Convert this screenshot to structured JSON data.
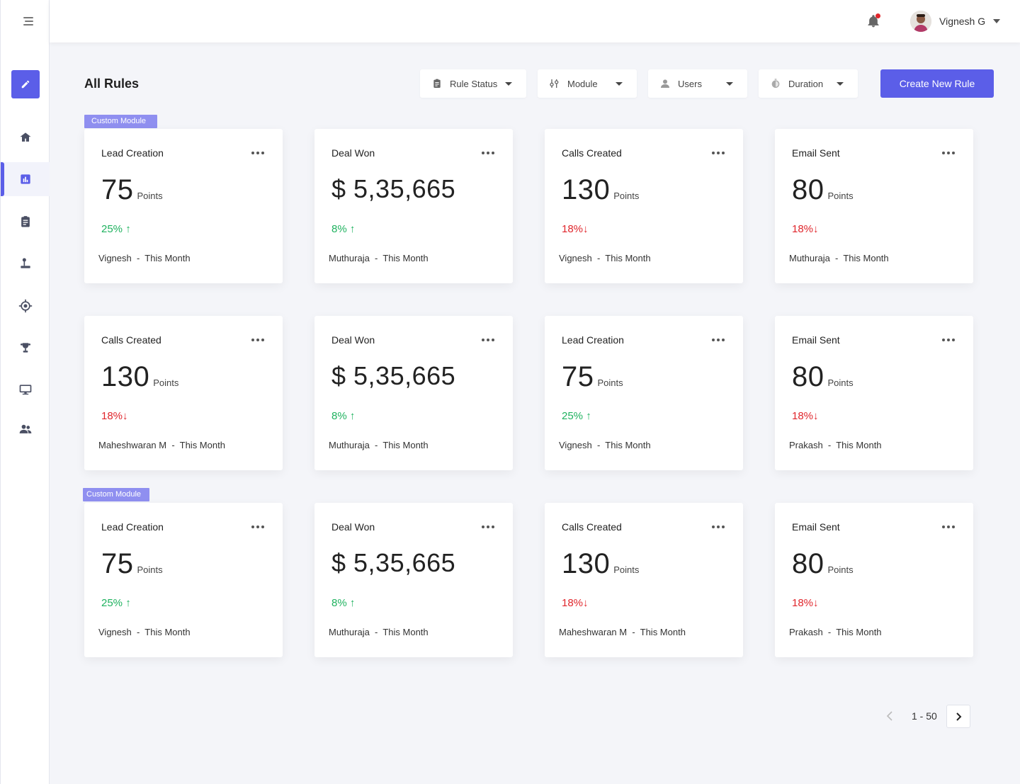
{
  "header": {
    "user_name": "Vignesh G"
  },
  "toolbar": {
    "title": "All Rules",
    "filters": [
      "Rule Status",
      "Module",
      "Users",
      "Duration"
    ],
    "create_label": "Create New Rule"
  },
  "badges": [
    "Custom Module",
    "Custom Module"
  ],
  "cards": [
    {
      "title": "Lead Creation",
      "value": "75",
      "unit": "Points",
      "trend": "25% ↑",
      "foot": "Vignesh  -  This Month"
    },
    {
      "title": "Deal Won",
      "value": "$ 5,35,665",
      "unit": "",
      "trend": "8% ↑",
      "foot": "Muthuraja  -  This Month"
    },
    {
      "title": "Calls Created",
      "value": "130",
      "unit": "Points",
      "trend": "18%↓",
      "foot": "Vignesh  -  This Month"
    },
    {
      "title": "Email Sent",
      "value": "80",
      "unit": "Points",
      "trend": "18%↓",
      "foot": "Muthuraja  -  This Month"
    },
    {
      "title": "Calls Created",
      "value": "130",
      "unit": "Points",
      "trend": "18%↓",
      "foot": "Maheshwaran M  -  This Month"
    },
    {
      "title": "Deal Won",
      "value": "$ 5,35,665",
      "unit": "",
      "trend": "8% ↑",
      "foot": "Muthuraja  -  This Month"
    },
    {
      "title": "Lead Creation",
      "value": "75",
      "unit": "Points",
      "trend": "25% ↑",
      "foot": "Vignesh  -  This Month"
    },
    {
      "title": "Email Sent",
      "value": "80",
      "unit": "Points",
      "trend": "18%↓",
      "foot": "Prakash  -  This Month"
    },
    {
      "title": "Lead Creation",
      "value": "75",
      "unit": "Points",
      "trend": "25% ↑",
      "foot": "Vignesh  -  This Month"
    },
    {
      "title": "Deal Won",
      "value": "$ 5,35,665",
      "unit": "",
      "trend": "8% ↑",
      "foot": "Muthuraja  -  This Month"
    },
    {
      "title": "Calls Created",
      "value": "130",
      "unit": "Points",
      "trend": "18%↓",
      "foot": "Maheshwaran M  -  This Month"
    },
    {
      "title": "Email Sent",
      "value": "80",
      "unit": "Points",
      "trend": "18%↓",
      "foot": "Prakash  -  This Month"
    }
  ],
  "pager": {
    "range": "1 - 50"
  },
  "colors": {
    "accent": "#5b5ee8",
    "up": "#1fb25f",
    "down": "#e0262c",
    "badge": "#8f8ff0"
  }
}
